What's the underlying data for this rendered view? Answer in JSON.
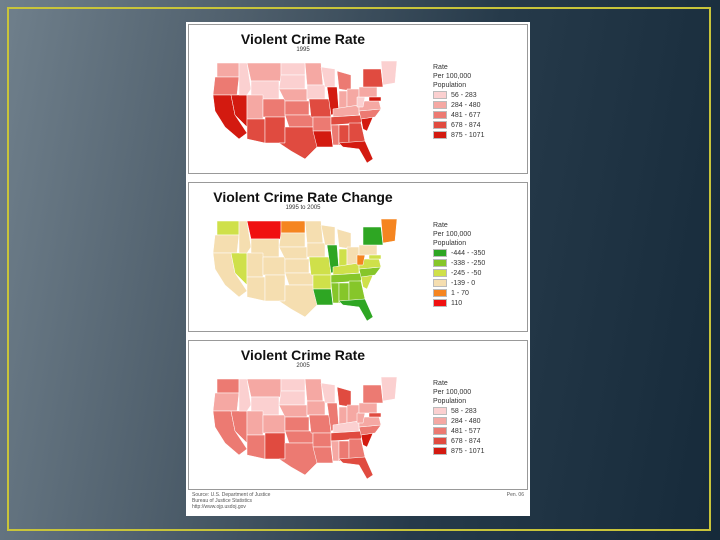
{
  "panels": [
    {
      "title": "Violent Crime Rate",
      "subtitle": "1995",
      "legend_lines": [
        "Rate",
        "Per 100,000",
        "Population"
      ],
      "legend": [
        {
          "label": "56 - 283",
          "color": "#fbd0d0"
        },
        {
          "label": "284 - 480",
          "color": "#f5a8a3"
        },
        {
          "label": "481 - 677",
          "color": "#ec7a72"
        },
        {
          "label": "678 - 874",
          "color": "#e04b40"
        },
        {
          "label": "875 - 1071",
          "color": "#d31a10"
        }
      ]
    },
    {
      "title": "Violent Crime Rate Change",
      "subtitle": "1995 to 2005",
      "legend_lines": [
        "Rate",
        "Per 100,000",
        "Population"
      ],
      "legend": [
        {
          "label": "-444 - -350",
          "color": "#2ea623"
        },
        {
          "label": "-338 - -250",
          "color": "#86c62a"
        },
        {
          "label": "-245 - -50",
          "color": "#cfe04a"
        },
        {
          "label": "-139 - 0",
          "color": "#f5deb0"
        },
        {
          "label": "1 - 70",
          "color": "#f58520"
        },
        {
          "label": "110",
          "color": "#f01010"
        }
      ]
    },
    {
      "title": "Violent Crime Rate",
      "subtitle": "2005",
      "legend_lines": [
        "Rate",
        "Per 100,000",
        "Population"
      ],
      "legend": [
        {
          "label": "58 - 283",
          "color": "#fbd0d0"
        },
        {
          "label": "284 - 480",
          "color": "#f5a8a3"
        },
        {
          "label": "481 - 577",
          "color": "#ec7a72"
        },
        {
          "label": "678 - 874",
          "color": "#e04b40"
        },
        {
          "label": "875 - 1071",
          "color": "#d31a10"
        }
      ]
    }
  ],
  "footer": {
    "source": "Source: U.S. Department of Justice",
    "bureau": "Bureau of Justice Statistics",
    "url": "http://www.ojp.usdoj.gov",
    "page": "Pen. 06"
  },
  "colors": {
    "frame": "#c8c43a"
  }
}
